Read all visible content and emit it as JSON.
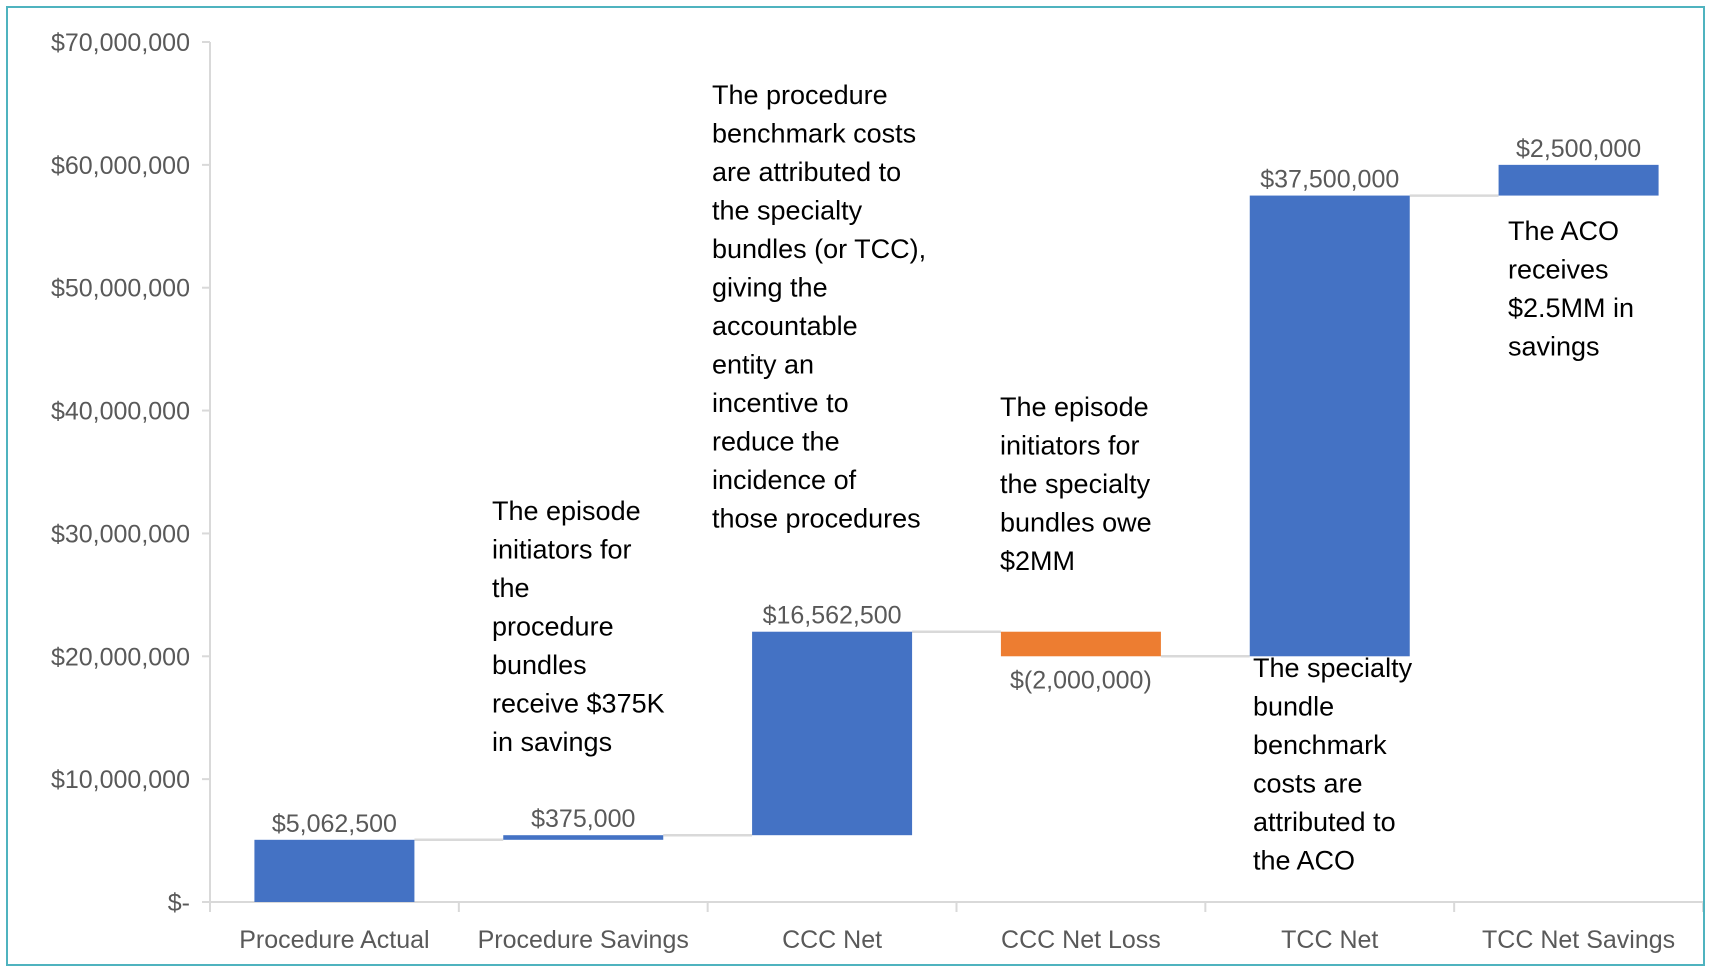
{
  "chart_data": {
    "type": "waterfall",
    "title": "",
    "xlabel": "",
    "ylabel": "",
    "ylim": [
      0,
      70000000
    ],
    "yticks": [
      {
        "value": 0,
        "label": "$-"
      },
      {
        "value": 10000000,
        "label": "$10,000,000"
      },
      {
        "value": 20000000,
        "label": "$20,000,000"
      },
      {
        "value": 30000000,
        "label": "$30,000,000"
      },
      {
        "value": 40000000,
        "label": "$40,000,000"
      },
      {
        "value": 50000000,
        "label": "$50,000,000"
      },
      {
        "value": 60000000,
        "label": "$60,000,000"
      },
      {
        "value": 70000000,
        "label": "$70,000,000"
      }
    ],
    "grid": false,
    "legend": "none",
    "colors": {
      "increase": "#4472c4",
      "decrease": "#ed7d31",
      "connector": "#d9d9d9",
      "axis": "#d9d9d9",
      "frame": "#4fb3bf"
    },
    "bars": [
      {
        "category": "Procedure Actual",
        "value": 5062500,
        "base": 0,
        "top": 5062500,
        "label": "$5,062,500",
        "kind": "increase"
      },
      {
        "category": "Procedure Savings",
        "value": 375000,
        "base": 5062500,
        "top": 5437500,
        "label": "$375,000",
        "kind": "increase"
      },
      {
        "category": "CCC Net",
        "value": 16562500,
        "base": 5437500,
        "top": 22000000,
        "label": "$16,562,500",
        "kind": "increase"
      },
      {
        "category": "CCC Net Loss",
        "value": -2000000,
        "base": 20000000,
        "top": 22000000,
        "label": "$(2,000,000)",
        "kind": "decrease"
      },
      {
        "category": "TCC Net",
        "value": 37500000,
        "base": 20000000,
        "top": 57500000,
        "label": "$37,500,000",
        "kind": "increase"
      },
      {
        "category": "TCC Net Savings",
        "value": 2500000,
        "base": 57500000,
        "top": 60000000,
        "label": "$2,500,000",
        "kind": "increase"
      }
    ],
    "annotations": [
      {
        "category_index": 1,
        "lines": [
          "The episode",
          "initiators for",
          "the",
          "procedure",
          "bundles",
          "receive $375K",
          "in savings"
        ]
      },
      {
        "category_index": 2,
        "lines": [
          "The procedure",
          "benchmark costs",
          "are attributed to",
          "the specialty",
          "bundles (or TCC),",
          "giving the",
          "accountable",
          "entity an",
          "incentive to",
          "reduce the",
          "incidence of",
          "those procedures"
        ]
      },
      {
        "category_index": 3,
        "lines": [
          "The episode",
          "initiators for",
          "the specialty",
          "bundles owe",
          "$2MM"
        ]
      },
      {
        "category_index": 4,
        "lines": [
          "The specialty",
          "bundle",
          "benchmark",
          "costs are",
          "attributed to",
          "the ACO"
        ]
      },
      {
        "category_index": 5,
        "lines": [
          "The ACO",
          "receives",
          "$2.5MM in",
          "savings"
        ]
      }
    ]
  }
}
